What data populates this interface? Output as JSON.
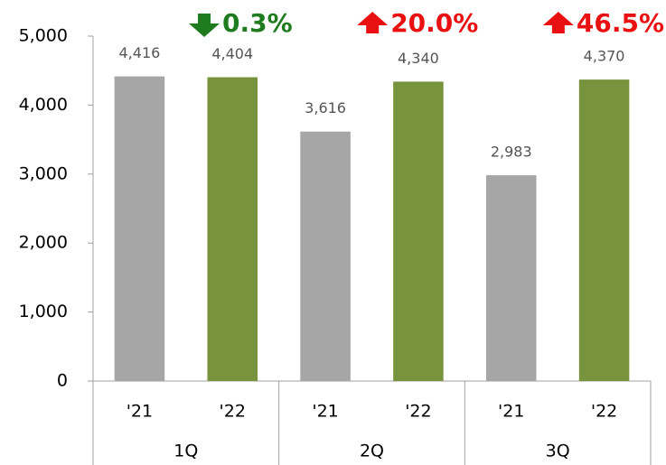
{
  "chart_data": {
    "type": "bar",
    "categories": [
      "'21",
      "'22",
      "'21",
      "'22",
      "'21",
      "'22"
    ],
    "groups": [
      "1Q",
      "2Q",
      "3Q"
    ],
    "values": [
      4416,
      4404,
      3616,
      4340,
      2983,
      4370
    ],
    "value_labels": [
      "4,416",
      "4,404",
      "3,616",
      "4,340",
      "2,983",
      "4,370"
    ],
    "colors": [
      "#a6a6a6",
      "#77933c",
      "#a6a6a6",
      "#77933c",
      "#a6a6a6",
      "#77933c"
    ],
    "annotations": [
      {
        "text": "0.3%",
        "direction": "down",
        "color": "#1e7b1e"
      },
      {
        "text": "20.0%",
        "direction": "up",
        "color": "#e81010"
      },
      {
        "text": "46.5%",
        "direction": "up",
        "color": "#e81010"
      }
    ],
    "ylim": [
      0,
      5000
    ],
    "yticks": [
      0,
      {
        "value": 1000,
        "label": "1,000"
      },
      {
        "value": 2000,
        "label": "2,000"
      },
      {
        "value": 3000,
        "label": "3,000"
      },
      {
        "value": 4000,
        "label": "4,000"
      },
      {
        "value": 5000,
        "label": "5,000"
      }
    ]
  }
}
